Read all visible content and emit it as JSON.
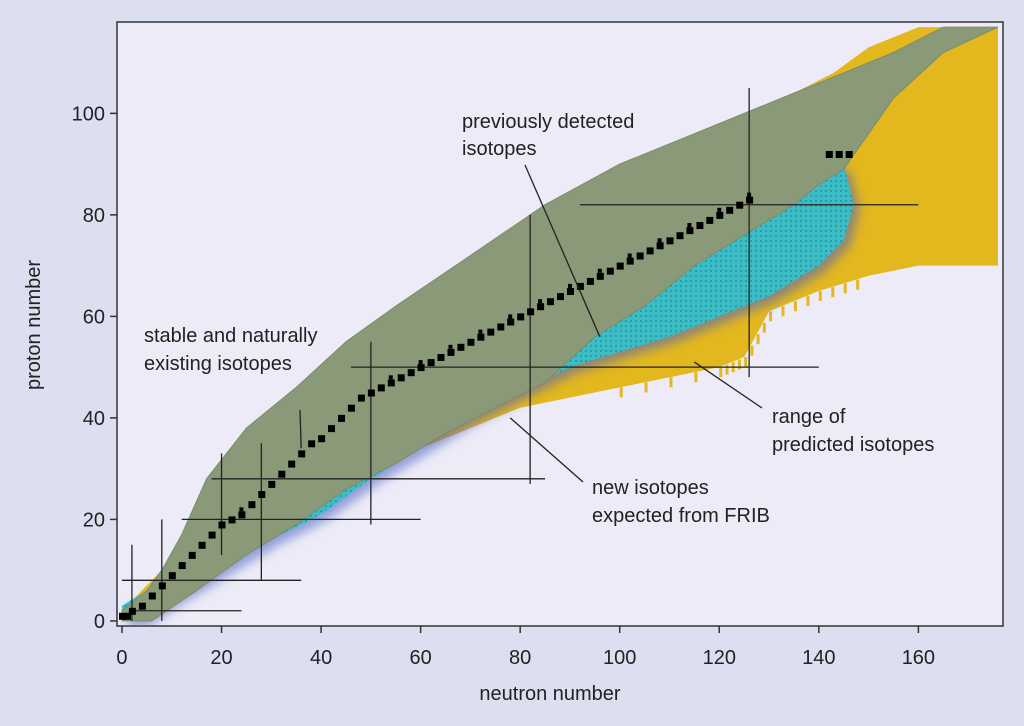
{
  "chart_data": {
    "type": "area",
    "title": "",
    "xlabel": "neutron number",
    "ylabel": "proton number",
    "xlim": [
      -1,
      177
    ],
    "ylim": [
      -1,
      118
    ],
    "xticks": [
      0,
      20,
      40,
      60,
      80,
      100,
      120,
      140,
      160
    ],
    "yticks": [
      0,
      20,
      40,
      60,
      80,
      100
    ],
    "series": [
      {
        "name": "range of predicted isotopes",
        "color": "#e3b71e",
        "polygon": [
          [
            0,
            0
          ],
          [
            4,
            0
          ],
          [
            20,
            11
          ],
          [
            40,
            22
          ],
          [
            60,
            34
          ],
          [
            80,
            42
          ],
          [
            100,
            46
          ],
          [
            120,
            50
          ],
          [
            125,
            52
          ],
          [
            130,
            61
          ],
          [
            140,
            65
          ],
          [
            150,
            68
          ],
          [
            160,
            70
          ],
          [
            176,
            70
          ],
          [
            176,
            117
          ],
          [
            160,
            117
          ],
          [
            150,
            113
          ],
          [
            143,
            108
          ],
          [
            135,
            104
          ],
          [
            120,
            98
          ],
          [
            100,
            84
          ],
          [
            80,
            70
          ],
          [
            60,
            55
          ],
          [
            40,
            38
          ],
          [
            20,
            20
          ],
          [
            10,
            12
          ],
          [
            0,
            2
          ]
        ]
      },
      {
        "name": "new isotopes expected from FRIB",
        "color": "#3cbcc4",
        "polygon": [
          [
            0,
            0
          ],
          [
            4,
            0
          ],
          [
            10,
            4
          ],
          [
            20,
            10
          ],
          [
            30,
            16
          ],
          [
            40,
            21
          ],
          [
            50,
            28
          ],
          [
            60,
            34
          ],
          [
            70,
            40
          ],
          [
            80,
            45
          ],
          [
            90,
            50
          ],
          [
            100,
            53
          ],
          [
            110,
            56
          ],
          [
            120,
            60
          ],
          [
            130,
            64
          ],
          [
            140,
            70
          ],
          [
            145,
            75
          ],
          [
            147,
            82
          ],
          [
            145,
            90
          ],
          [
            120,
            85
          ],
          [
            100,
            75
          ],
          [
            80,
            62
          ],
          [
            60,
            45
          ],
          [
            40,
            30
          ],
          [
            20,
            18
          ],
          [
            10,
            9
          ],
          [
            0,
            3
          ]
        ]
      },
      {
        "name": "previously detected isotopes",
        "color": "#8a9a79",
        "polygon": [
          [
            0,
            0
          ],
          [
            6,
            0
          ],
          [
            15,
            6
          ],
          [
            25,
            13
          ],
          [
            35,
            19
          ],
          [
            45,
            26
          ],
          [
            55,
            31
          ],
          [
            65,
            37
          ],
          [
            75,
            42
          ],
          [
            85,
            47
          ],
          [
            95,
            56
          ],
          [
            105,
            62
          ],
          [
            115,
            70
          ],
          [
            125,
            76
          ],
          [
            135,
            82
          ],
          [
            140,
            86
          ],
          [
            145,
            89
          ],
          [
            150,
            96
          ],
          [
            155,
            103
          ],
          [
            165,
            112
          ],
          [
            176,
            117
          ],
          [
            165,
            117
          ],
          [
            155,
            112
          ],
          [
            145,
            108
          ],
          [
            135,
            104
          ],
          [
            115,
            96
          ],
          [
            100,
            90
          ],
          [
            85,
            82
          ],
          [
            70,
            72
          ],
          [
            55,
            62
          ],
          [
            45,
            55
          ],
          [
            35,
            46
          ],
          [
            25,
            38
          ],
          [
            17,
            28
          ],
          [
            12,
            17
          ],
          [
            8,
            10
          ],
          [
            5,
            6
          ],
          [
            0,
            2
          ]
        ]
      },
      {
        "name": "stable and naturally existing isotopes",
        "color": "#000000",
        "points": [
          [
            0,
            1
          ],
          [
            1,
            1
          ],
          [
            2,
            2
          ],
          [
            4,
            3
          ],
          [
            6,
            5
          ],
          [
            8,
            7
          ],
          [
            10,
            9
          ],
          [
            12,
            11
          ],
          [
            14,
            13
          ],
          [
            16,
            15
          ],
          [
            18,
            17
          ],
          [
            20,
            19
          ],
          [
            22,
            20
          ],
          [
            24,
            21
          ],
          [
            26,
            23
          ],
          [
            28,
            25
          ],
          [
            30,
            27
          ],
          [
            32,
            29
          ],
          [
            34,
            31
          ],
          [
            36,
            33
          ],
          [
            38,
            35
          ],
          [
            40,
            36
          ],
          [
            42,
            38
          ],
          [
            44,
            40
          ],
          [
            46,
            42
          ],
          [
            48,
            44
          ],
          [
            50,
            45
          ],
          [
            52,
            46
          ],
          [
            54,
            47
          ],
          [
            56,
            48
          ],
          [
            58,
            49
          ],
          [
            60,
            50
          ],
          [
            62,
            51
          ],
          [
            64,
            52
          ],
          [
            66,
            53
          ],
          [
            68,
            54
          ],
          [
            70,
            55
          ],
          [
            72,
            56
          ],
          [
            74,
            57
          ],
          [
            76,
            58
          ],
          [
            78,
            59
          ],
          [
            80,
            60
          ],
          [
            82,
            61
          ],
          [
            84,
            62
          ],
          [
            86,
            63
          ],
          [
            88,
            64
          ],
          [
            90,
            65
          ],
          [
            92,
            66
          ],
          [
            94,
            67
          ],
          [
            96,
            68
          ],
          [
            98,
            69
          ],
          [
            100,
            70
          ],
          [
            102,
            71
          ],
          [
            104,
            72
          ],
          [
            106,
            73
          ],
          [
            108,
            74
          ],
          [
            110,
            75
          ],
          [
            112,
            76
          ],
          [
            114,
            77
          ],
          [
            116,
            78
          ],
          [
            118,
            79
          ],
          [
            120,
            80
          ],
          [
            122,
            81
          ],
          [
            124,
            82
          ],
          [
            126,
            83
          ],
          [
            142,
            92
          ],
          [
            144,
            92
          ],
          [
            146,
            92
          ]
        ]
      }
    ],
    "magic_numbers": [
      2,
      8,
      20,
      28,
      50,
      82,
      126
    ],
    "magic_lines": {
      "horizontal": [
        {
          "y": 2,
          "x0": 2,
          "x1": 24
        },
        {
          "y": 8,
          "x0": 0,
          "x1": 36
        },
        {
          "y": 20,
          "x0": 12,
          "x1": 60
        },
        {
          "y": 28,
          "x0": 18,
          "x1": 85
        },
        {
          "y": 50,
          "x0": 46,
          "x1": 140
        },
        {
          "y": 82,
          "x0": 92,
          "x1": 160
        }
      ],
      "vertical": [
        {
          "x": 2,
          "y0": 0,
          "y1": 15
        },
        {
          "x": 8,
          "y0": 0,
          "y1": 20
        },
        {
          "x": 20,
          "y0": 13,
          "y1": 33
        },
        {
          "x": 28,
          "y0": 8,
          "y1": 35
        },
        {
          "x": 50,
          "y0": 19,
          "y1": 55
        },
        {
          "x": 82,
          "y0": 27,
          "y1": 80
        },
        {
          "x": 126,
          "y0": 48,
          "y1": 105
        }
      ]
    },
    "annotations": [
      {
        "lines": [
          "previously detected",
          "isotopes"
        ],
        "pointer": [
          96,
          56
        ]
      },
      {
        "lines": [
          "stable and naturally",
          "existing isotopes"
        ],
        "pointer": [
          36,
          34
        ]
      },
      {
        "lines": [
          "range of",
          "predicted isotopes"
        ],
        "pointer": [
          115,
          51
        ]
      },
      {
        "lines": [
          "new isotopes",
          "expected from FRIB"
        ],
        "pointer": [
          78,
          40
        ]
      }
    ]
  }
}
